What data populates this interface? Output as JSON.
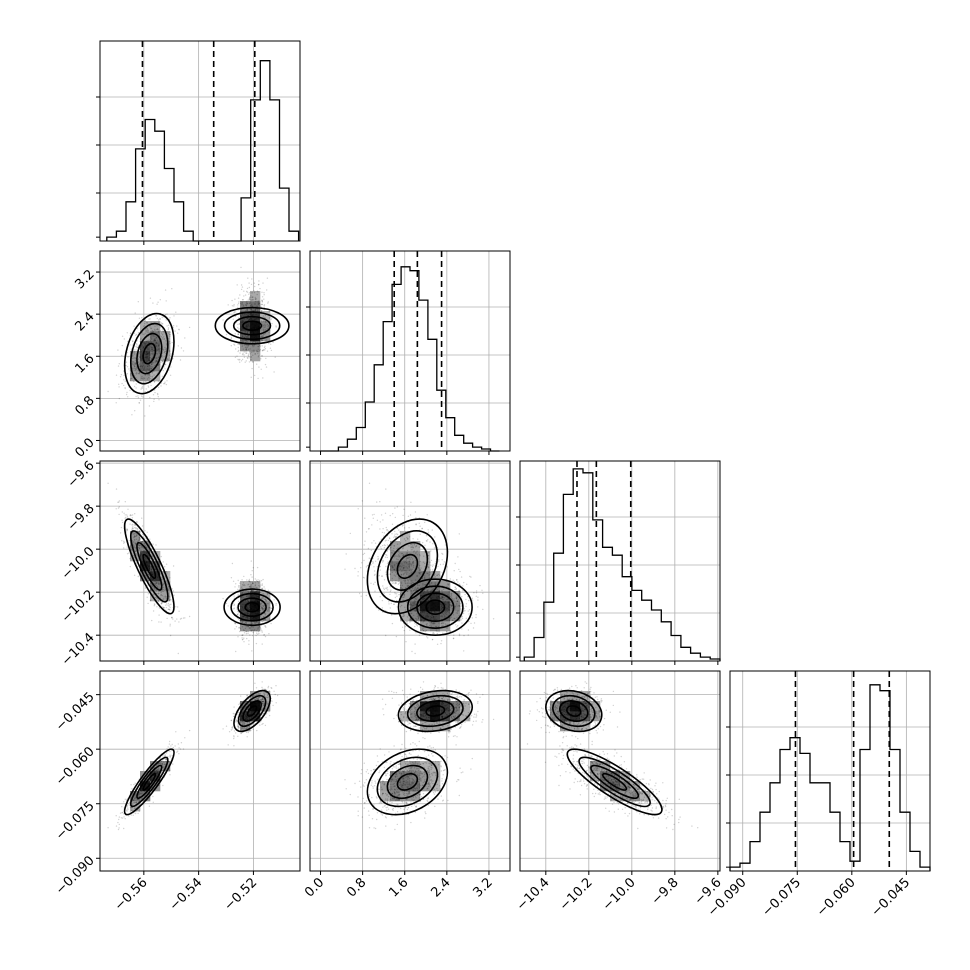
{
  "chart_data": {
    "type": "scatter",
    "title": "",
    "parameters": [
      {
        "index": 0,
        "range": [
          -0.576,
          -0.503
        ],
        "ticks": [
          -0.56,
          -0.54,
          -0.52
        ],
        "tick_labels": [
          "−0.56",
          "−0.54",
          "−0.52"
        ]
      },
      {
        "index": 1,
        "range": [
          -0.2,
          3.6
        ],
        "ticks": [
          0.0,
          0.8,
          1.6,
          2.4,
          3.2
        ],
        "tick_labels": [
          "0.0",
          "0.8",
          "1.6",
          "2.4",
          "3.2"
        ]
      },
      {
        "index": 2,
        "range": [
          -10.52,
          -9.59
        ],
        "ticks": [
          -10.4,
          -10.2,
          -10.0,
          -9.8,
          -9.6
        ],
        "tick_labels": [
          "−10.4",
          "−10.2",
          "−10.0",
          "−9.8",
          "−9.6"
        ]
      },
      {
        "index": 3,
        "range": [
          -0.0935,
          -0.0385
        ],
        "ticks": [
          -0.09,
          -0.075,
          -0.06,
          -0.045
        ],
        "tick_labels": [
          "−0.090",
          "−0.075",
          "−0.060",
          "−0.045"
        ]
      }
    ],
    "quantiles": [
      [
        -0.5605,
        -0.5345,
        -0.5195
      ],
      [
        1.4,
        1.84,
        2.3
      ],
      [
        -10.255,
        -10.165,
        -10.005
      ],
      [
        -0.0755,
        -0.0595,
        -0.0497
      ]
    ],
    "histograms": [
      {
        "param": 0,
        "edges_start": -0.5735,
        "bin_width": 0.0035,
        "counts": [
          0.02,
          0.05,
          0.2,
          0.47,
          0.62,
          0.56,
          0.37,
          0.2,
          0.05,
          0.0,
          0.0,
          0.0,
          0.0,
          0.0,
          0.22,
          0.72,
          0.92,
          0.72,
          0.27,
          0.05
        ]
      },
      {
        "param": 1,
        "edges_start": 0.0,
        "bin_width": 0.17,
        "counts": [
          0.0,
          0.0,
          0.02,
          0.06,
          0.12,
          0.25,
          0.44,
          0.66,
          0.85,
          0.94,
          0.92,
          0.77,
          0.57,
          0.31,
          0.17,
          0.08,
          0.04,
          0.02,
          0.01,
          0.0
        ]
      },
      {
        "param": 2,
        "edges_start": -10.5,
        "bin_width": 0.0455,
        "counts": [
          0.02,
          0.12,
          0.3,
          0.55,
          0.85,
          0.98,
          0.96,
          0.72,
          0.58,
          0.54,
          0.43,
          0.36,
          0.31,
          0.26,
          0.2,
          0.13,
          0.07,
          0.04,
          0.02,
          0.01
        ]
      },
      {
        "param": 3,
        "edges_start": -0.0935,
        "bin_width": 0.00275,
        "counts": [
          0.02,
          0.04,
          0.15,
          0.3,
          0.45,
          0.62,
          0.68,
          0.6,
          0.45,
          0.45,
          0.3,
          0.15,
          0.05,
          0.62,
          0.95,
          0.92,
          0.62,
          0.3,
          0.1,
          0.02
        ]
      }
    ],
    "clusters": [
      {
        "weight": 0.5,
        "mean": [
          -0.558,
          1.65,
          -10.08,
          -0.069
        ],
        "sd": [
          0.0045,
          0.38,
          0.11,
          0.0045
        ],
        "corr": {
          "0-1": 0.3,
          "0-2": -0.85,
          "0-3": 0.9,
          "1-2": 0.3,
          "1-3": 0.3,
          "2-3": -0.85
        }
      },
      {
        "weight": 0.5,
        "mean": [
          -0.5205,
          2.18,
          -10.27,
          -0.0495
        ],
        "sd": [
          0.0033,
          0.35,
          0.065,
          0.0028
        ],
        "corr": {
          "0-1": 0.0,
          "0-2": 0.0,
          "0-3": 0.6,
          "1-2": 0.0,
          "1-3": 0.2,
          "2-3": -0.2
        }
      }
    ],
    "n_samples": 4500,
    "levels_sigma": [
      0.5,
      1.0,
      1.5,
      2.0
    ],
    "grid": true,
    "xlabel": "",
    "ylabel": ""
  }
}
